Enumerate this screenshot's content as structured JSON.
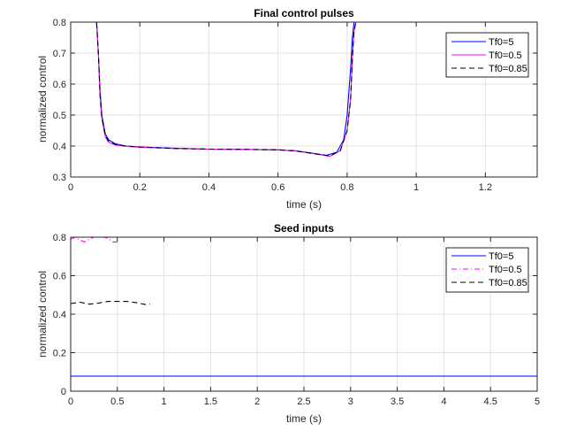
{
  "chart_data": [
    {
      "type": "line",
      "title": "Final control pulses",
      "xlabel": "time (s)",
      "ylabel": "normalized control",
      "xlim": [
        0,
        1.35
      ],
      "ylim": [
        0.3,
        0.8
      ],
      "xticks": [
        "0",
        "0.2",
        "0.4",
        "0.6",
        "0.8",
        "1",
        "1.2"
      ],
      "xtick_values": [
        0,
        0.2,
        0.4,
        0.6,
        0.8,
        1,
        1.2
      ],
      "yticks": [
        "0.3",
        "0.4",
        "0.5",
        "0.6",
        "0.7",
        "0.8"
      ],
      "ytick_values": [
        0.3,
        0.4,
        0.5,
        0.6,
        0.7,
        0.8
      ],
      "grid": true,
      "legend_position": "northeast",
      "series": [
        {
          "name": "Tf0=5",
          "color": "#0000ff",
          "style": "solid",
          "x": [
            0,
            0.075,
            0.08,
            0.085,
            0.09,
            0.1,
            0.11,
            0.13,
            0.16,
            0.2,
            0.3,
            0.4,
            0.5,
            0.6,
            0.65,
            0.7,
            0.74,
            0.77,
            0.79,
            0.8,
            0.81,
            0.815,
            0.82,
            0.85
          ],
          "y": [
            0.8,
            0.8,
            0.7,
            0.58,
            0.5,
            0.44,
            0.42,
            0.407,
            0.4,
            0.397,
            0.393,
            0.39,
            0.389,
            0.387,
            0.385,
            0.377,
            0.37,
            0.38,
            0.42,
            0.5,
            0.65,
            0.75,
            0.8,
            0.8
          ]
        },
        {
          "name": "Tf0=0.5",
          "color": "#ff00ff",
          "style": "solid",
          "x": [
            0,
            0.075,
            0.08,
            0.085,
            0.09,
            0.1,
            0.11,
            0.13,
            0.16,
            0.2,
            0.3,
            0.4,
            0.5,
            0.6,
            0.65,
            0.7,
            0.75,
            0.78,
            0.8,
            0.81,
            0.815,
            0.82,
            0.825,
            0.85
          ],
          "y": [
            0.8,
            0.8,
            0.7,
            0.56,
            0.49,
            0.43,
            0.412,
            0.403,
            0.399,
            0.396,
            0.392,
            0.39,
            0.389,
            0.388,
            0.384,
            0.376,
            0.367,
            0.385,
            0.45,
            0.55,
            0.68,
            0.77,
            0.8,
            0.8
          ]
        },
        {
          "name": "Tf0=0.85",
          "color": "#000000",
          "style": "dashed",
          "x": [
            0,
            0.075,
            0.08,
            0.085,
            0.09,
            0.1,
            0.11,
            0.13,
            0.16,
            0.2,
            0.3,
            0.4,
            0.5,
            0.6,
            0.65,
            0.7,
            0.75,
            0.78,
            0.8,
            0.81,
            0.815,
            0.82,
            0.825,
            0.85
          ],
          "y": [
            0.8,
            0.8,
            0.7,
            0.57,
            0.495,
            0.435,
            0.415,
            0.405,
            0.4,
            0.397,
            0.392,
            0.39,
            0.389,
            0.388,
            0.384,
            0.376,
            0.368,
            0.385,
            0.45,
            0.55,
            0.68,
            0.77,
            0.8,
            0.8
          ]
        }
      ],
      "legend": [
        "Tf0=5",
        "Tf0=0.5",
        "Tf0=0.85"
      ]
    },
    {
      "type": "line",
      "title": "Seed  inputs",
      "xlabel": "time (s)",
      "ylabel": "normalized control",
      "xlim": [
        0,
        5
      ],
      "ylim": [
        0,
        0.8
      ],
      "xticks": [
        "0",
        "0.5",
        "1",
        "1.5",
        "2",
        "2.5",
        "3",
        "3.5",
        "4",
        "4.5",
        "5"
      ],
      "xtick_values": [
        0,
        0.5,
        1,
        1.5,
        2,
        2.5,
        3,
        3.5,
        4,
        4.5,
        5
      ],
      "yticks": [
        "0",
        "0.2",
        "0.4",
        "0.6",
        "0.8"
      ],
      "ytick_values": [
        0,
        0.2,
        0.4,
        0.6,
        0.8
      ],
      "grid": true,
      "legend_position": "northeast",
      "series": [
        {
          "name": "Tf0=5",
          "color": "#0000ff",
          "style": "solid",
          "x": [
            0,
            1,
            2,
            3,
            4,
            5
          ],
          "y": [
            0.078,
            0.078,
            0.078,
            0.078,
            0.078,
            0.078
          ]
        },
        {
          "name": "Tf0=0.5",
          "color": "#ff00ff",
          "style": "dashdot",
          "x": [
            0,
            0.05,
            0.1,
            0.15,
            0.2,
            0.25,
            0.3,
            0.35,
            0.4,
            0.45,
            0.5
          ],
          "y": [
            0.79,
            0.8,
            0.785,
            0.775,
            0.79,
            0.8,
            0.8,
            0.8,
            0.795,
            0.775,
            0.775
          ]
        },
        {
          "name": "Tf0=0.85",
          "color": "#000000",
          "style": "dashed",
          "x": [
            0,
            0.1,
            0.2,
            0.3,
            0.4,
            0.5,
            0.6,
            0.7,
            0.8,
            0.85
          ],
          "y": [
            0.455,
            0.462,
            0.452,
            0.458,
            0.466,
            0.466,
            0.466,
            0.46,
            0.45,
            0.452
          ]
        }
      ],
      "legend": [
        "Tf0=5",
        "Tf0=0.5",
        "Tf0=0.85"
      ]
    }
  ],
  "plots": {
    "top": {
      "title": "Final control pulses",
      "xlabel": "time (s)",
      "ylabel": "normalized control",
      "legend": [
        "Tf0=5",
        "Tf0=0.5",
        "Tf0=0.85"
      ]
    },
    "bottom": {
      "title": "Seed  inputs",
      "xlabel": "time (s)",
      "ylabel": "normalized control",
      "legend": [
        "Tf0=5",
        "Tf0=0.5",
        "Tf0=0.85"
      ]
    }
  }
}
